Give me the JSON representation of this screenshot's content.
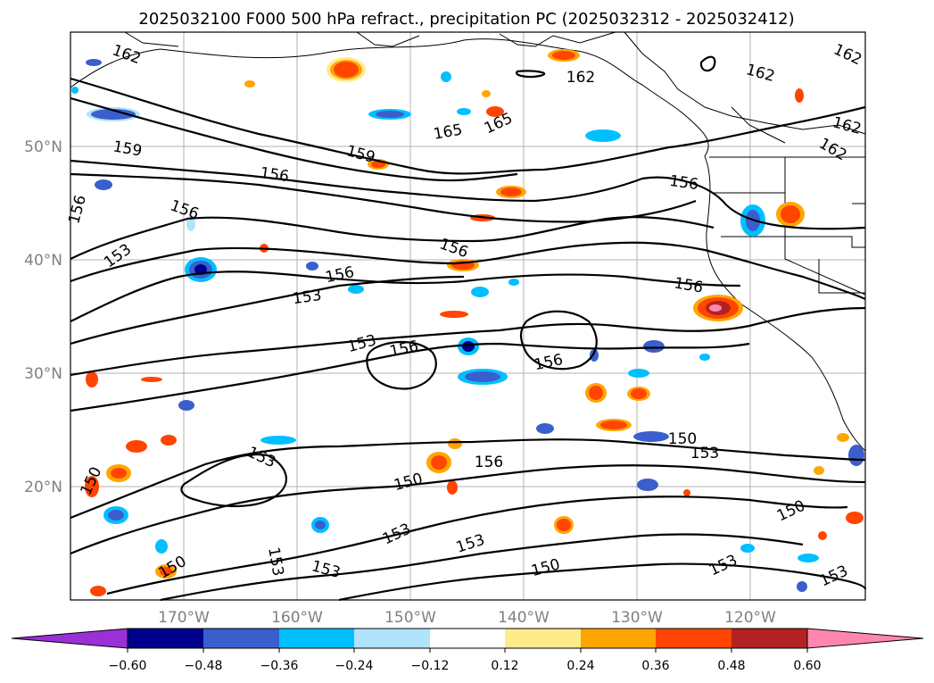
{
  "title": "2025032100 F000 500 hPa refract., precipitation PC (2025032312 - 2025032412)",
  "lat_labels": [
    "50°N",
    "40°N",
    "30°N",
    "20°N"
  ],
  "lon_labels": [
    "170°W",
    "160°W",
    "150°W",
    "140°W",
    "130°W",
    "120°W"
  ],
  "contour_labels": [
    "162",
    "162",
    "162",
    "162",
    "162",
    "162",
    "165",
    "165",
    "159",
    "159",
    "156",
    "156",
    "156",
    "156",
    "156",
    "156",
    "156",
    "156",
    "156",
    "156",
    "153",
    "153",
    "153",
    "153",
    "153",
    "153",
    "153",
    "153",
    "153",
    "153",
    "153",
    "150",
    "150",
    "150",
    "150",
    "150",
    "150"
  ],
  "colorbar": {
    "ticks": [
      "−0.60",
      "−0.48",
      "−0.36",
      "−0.24",
      "−0.12",
      "0.12",
      "0.24",
      "0.36",
      "0.48",
      "0.60"
    ],
    "colors": [
      "#9b30d6",
      "#00008b",
      "#3a5fcd",
      "#00bfff",
      "#afe4fb",
      "#ffffff",
      "#ffeb8a",
      "#ffa500",
      "#ff4500",
      "#b22222",
      "#ff86b0"
    ]
  }
}
